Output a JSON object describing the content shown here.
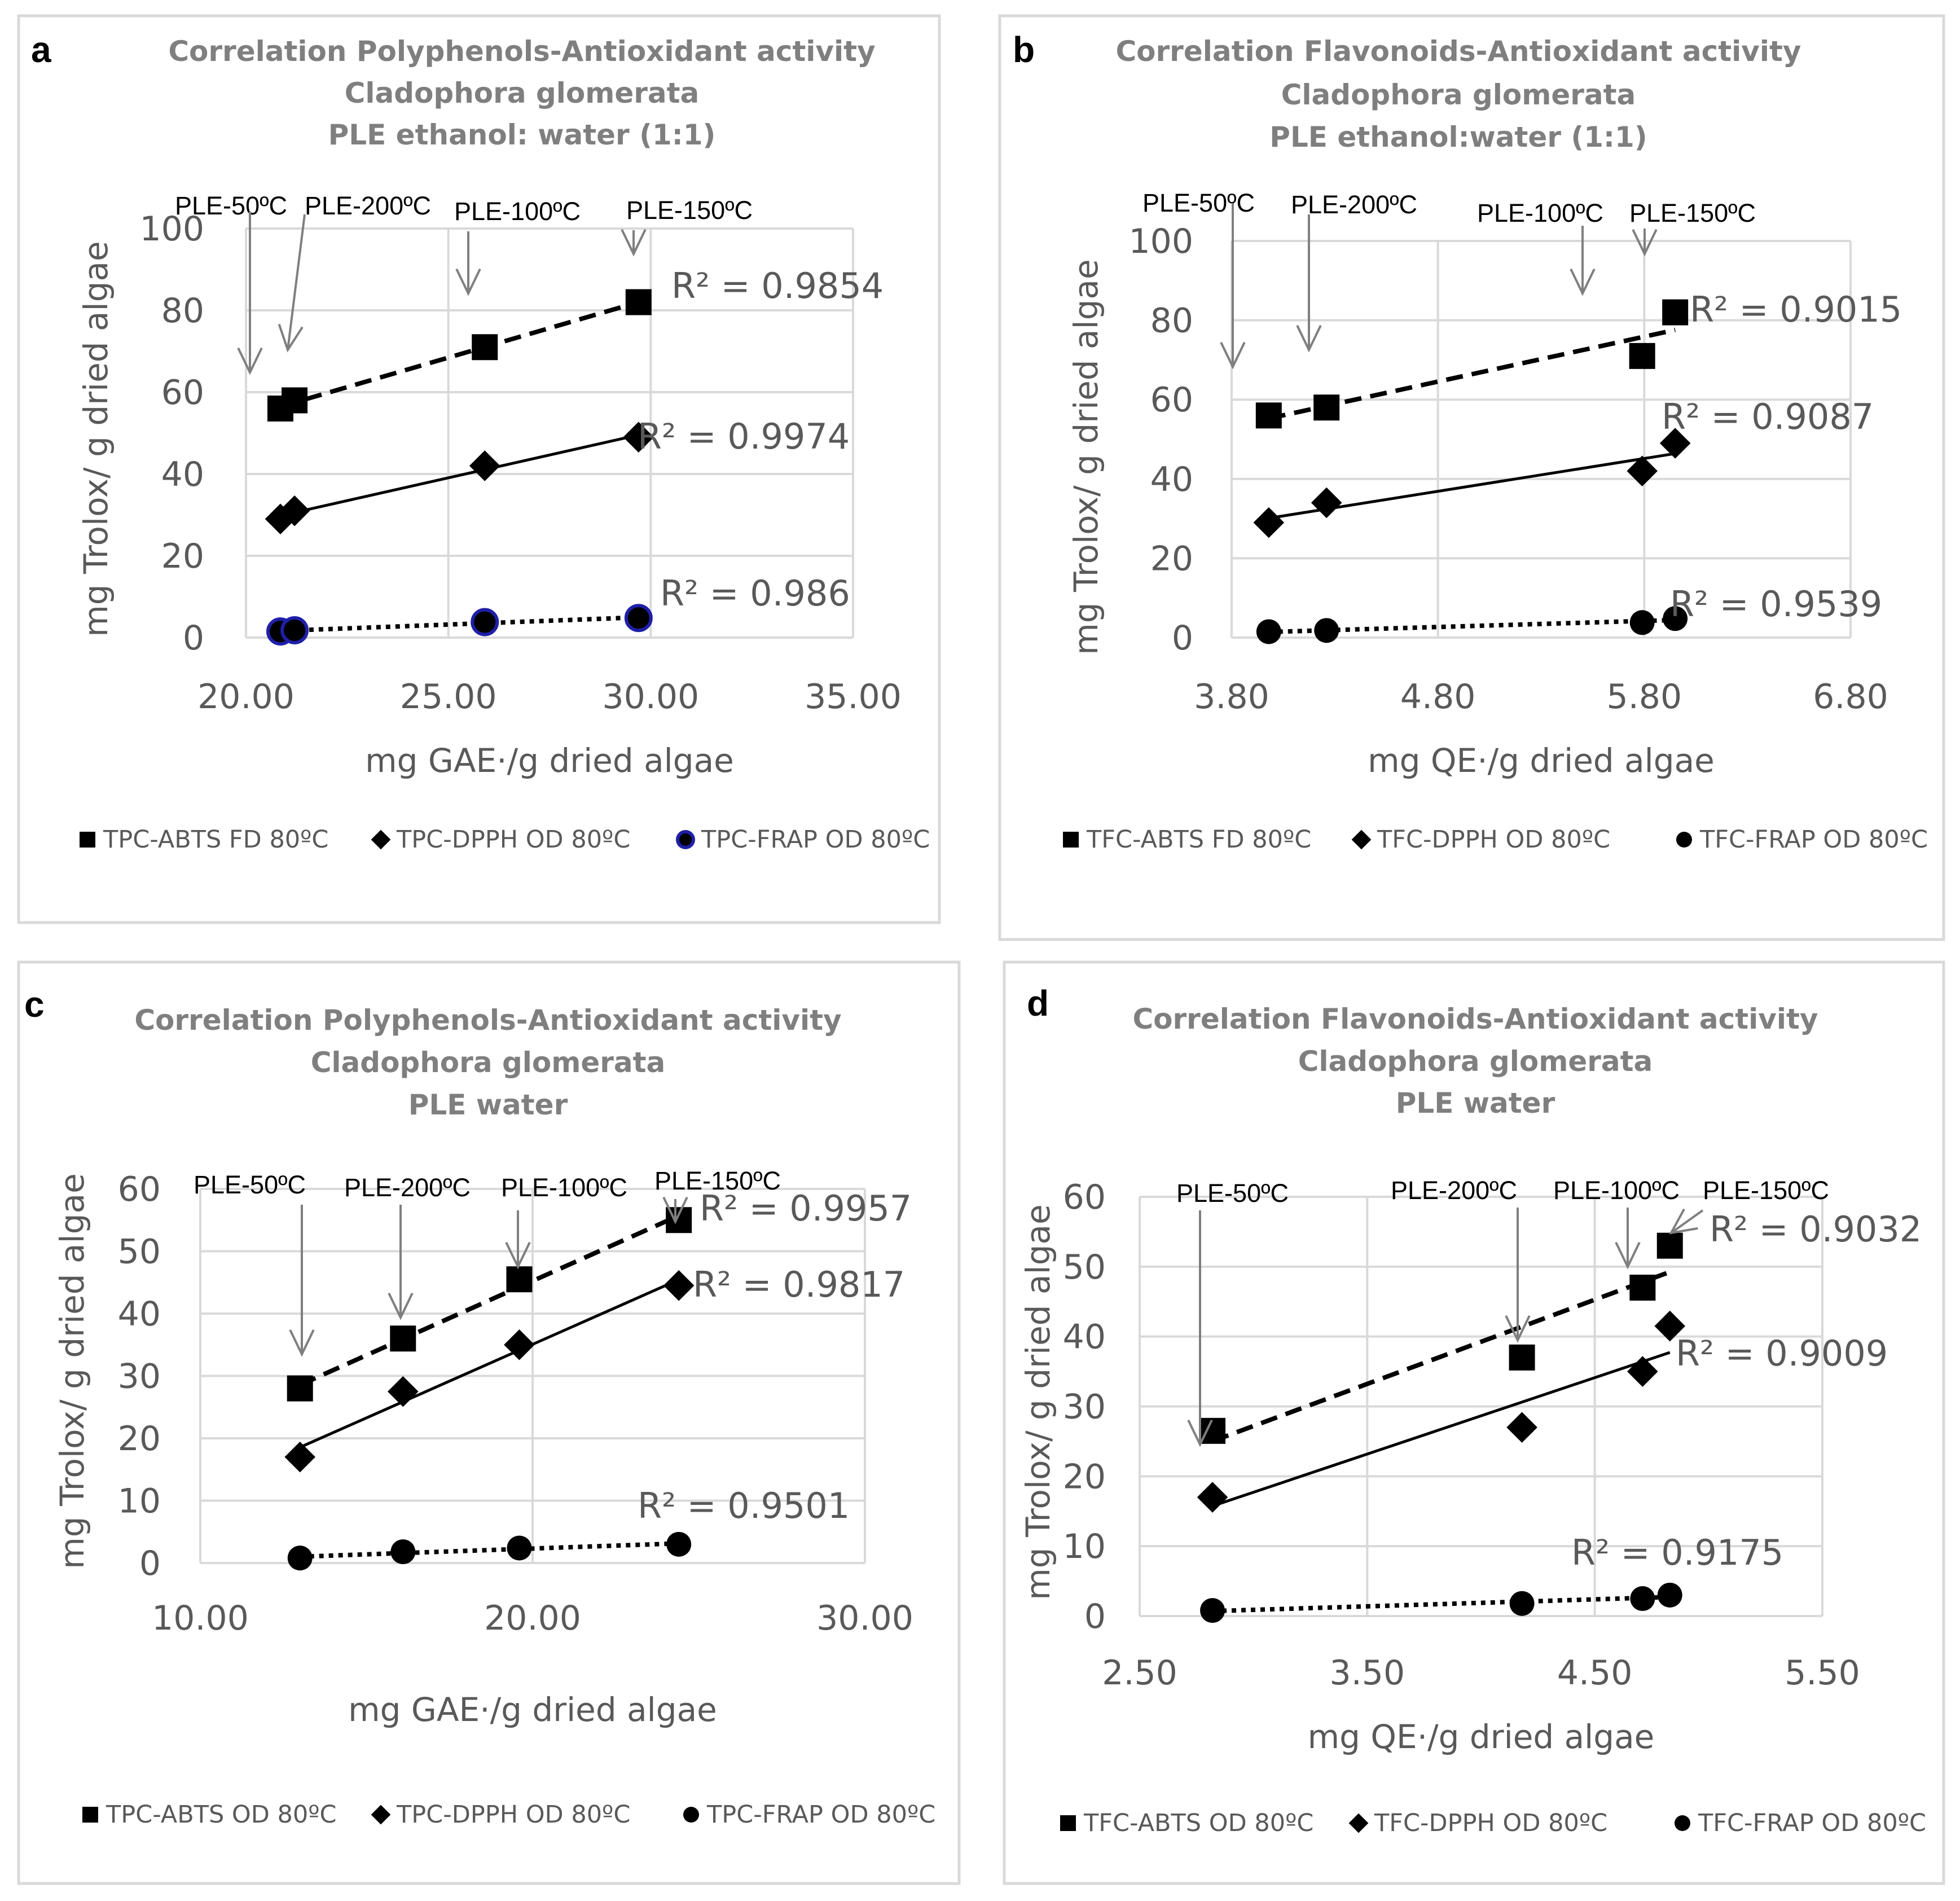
{
  "colors": {
    "grid": "#d9d9d9",
    "border": "#d9d9d9",
    "marker": "#000000",
    "frap_edge_a": "#1f1fa8",
    "arrow": "#7f7f7f"
  },
  "chart_data": [
    {
      "letter": "a",
      "type": "scatter",
      "title": [
        "Correlation  Polyphenols-Antioxidant activity",
        "Cladophora glomerata",
        "PLE   ethanol: water (1:1)"
      ],
      "xlabel": "mg GAE·/g dried algae",
      "ylabel": "mg Trolox/ g dried algae",
      "xlim": [
        20,
        35
      ],
      "ylim": [
        0,
        100
      ],
      "xticks": [
        "20.00",
        "25.00",
        "30.00",
        "35.00"
      ],
      "yticks": [
        "0",
        "20",
        "40",
        "60",
        "80",
        "100"
      ],
      "grid": true,
      "legend": "bottom",
      "series": [
        {
          "name": "TPC-ABTS FD 80ºC",
          "marker": "square",
          "trend": "dashed",
          "r2": "R² = 0.9854",
          "x": [
            20.85,
            21.2,
            25.9,
            29.7
          ],
          "y": [
            56,
            58,
            71,
            82
          ]
        },
        {
          "name": "TPC-DPPH OD 80ºC",
          "marker": "diamond",
          "trend": "solid",
          "r2": "R² = 0.9974",
          "x": [
            20.85,
            21.2,
            25.9,
            29.7
          ],
          "y": [
            29,
            31,
            42,
            49
          ]
        },
        {
          "name": "TPC-FRAP OD 80ºC",
          "marker": "circle-blue",
          "trend": "dotted",
          "r2": "R² = 0.986",
          "x": [
            20.85,
            21.2,
            25.9,
            29.7
          ],
          "y": [
            1.5,
            1.8,
            3.8,
            4.8
          ]
        }
      ],
      "annotations": [
        "PLE-50ºC",
        "PLE-200ºC",
        "PLE-100ºC",
        "PLE-150ºC"
      ]
    },
    {
      "letter": "b",
      "type": "scatter",
      "title": [
        "Correlation Flavonoids-Antioxidant activity",
        "Cladophora glomerata",
        "PLE   ethanol:water (1:1)"
      ],
      "xlabel": "mg QE·/g dried algae",
      "ylabel": "mg Trolox/ g dried algae",
      "xlim": [
        3.8,
        6.8
      ],
      "ylim": [
        0,
        100
      ],
      "xticks": [
        "3.80",
        "4.80",
        "5.80",
        "6.80"
      ],
      "yticks": [
        "0",
        "20",
        "40",
        "60",
        "80",
        "100"
      ],
      "grid": true,
      "legend": "bottom",
      "series": [
        {
          "name": "TFC-ABTS FD 80ºC",
          "marker": "square",
          "trend": "dashed",
          "r2": "R² = 0.9015",
          "x": [
            3.98,
            4.26,
            5.79,
            5.95
          ],
          "y": [
            56,
            58,
            71,
            82
          ]
        },
        {
          "name": "TFC-DPPH OD 80ºC",
          "marker": "diamond",
          "trend": "solid",
          "r2": "R² = 0.9087",
          "x": [
            3.98,
            4.26,
            5.79,
            5.95
          ],
          "y": [
            29,
            34,
            42,
            49
          ]
        },
        {
          "name": "TFC-FRAP OD 80ºC",
          "marker": "circle",
          "trend": "dotted",
          "r2": "R² = 0.9539",
          "x": [
            3.98,
            4.26,
            5.79,
            5.95
          ],
          "y": [
            1.5,
            1.8,
            3.8,
            4.8
          ]
        }
      ],
      "annotations": [
        "PLE-50ºC",
        "PLE-200ºC",
        "PLE-100ºC",
        "PLE-150ºC"
      ]
    },
    {
      "letter": "c",
      "type": "scatter",
      "title": [
        "Correlation  Polyphenols-Antioxidant activity",
        "Cladophora glomerata",
        "PLE   water"
      ],
      "xlabel": "mg GAE·/g dried algae",
      "ylabel": "mg Trolox/ g dried algae",
      "xlim": [
        10,
        30
      ],
      "ylim": [
        0,
        60
      ],
      "xticks": [
        "10.00",
        "20.00",
        "30.00"
      ],
      "yticks": [
        "0",
        "10",
        "20",
        "30",
        "40",
        "50",
        "60"
      ],
      "grid": true,
      "legend": "bottom",
      "series": [
        {
          "name": "TPC-ABTS OD 80ºC",
          "marker": "square",
          "trend": "dashed",
          "r2": "R² = 0.9957",
          "x": [
            13.0,
            16.1,
            19.6,
            24.4
          ],
          "y": [
            28,
            36,
            45.5,
            55
          ]
        },
        {
          "name": "TPC-DPPH OD 80ºC",
          "marker": "diamond",
          "trend": "solid",
          "r2": "R² = 0.9817",
          "x": [
            13.0,
            16.1,
            19.6,
            24.4
          ],
          "y": [
            17,
            27.5,
            35,
            44.5
          ]
        },
        {
          "name": "TPC-FRAP OD 80ºC",
          "marker": "circle",
          "trend": "dotted",
          "r2": "R² = 0.9501",
          "x": [
            13.0,
            16.1,
            19.6,
            24.4
          ],
          "y": [
            0.8,
            1.8,
            2.4,
            3.0
          ]
        }
      ],
      "annotations": [
        "PLE-50ºC",
        "PLE-200ºC",
        "PLE-100ºC",
        "PLE-150ºC"
      ]
    },
    {
      "letter": "d",
      "type": "scatter",
      "title": [
        "Correlation Flavonoids-Antioxidant activity",
        "Cladophora glomerata",
        "PLE   water"
      ],
      "xlabel": "mg QE·/g dried algae",
      "ylabel": "mg Trolox/ g dried algae",
      "xlim": [
        2.5,
        5.5
      ],
      "ylim": [
        0,
        60
      ],
      "xticks": [
        "2.50",
        "3.50",
        "4.50",
        "5.50"
      ],
      "yticks": [
        "0",
        "10",
        "20",
        "30",
        "40",
        "50",
        "60"
      ],
      "grid": true,
      "legend": "bottom",
      "series": [
        {
          "name": "TFC-ABTS OD 80ºC",
          "marker": "square",
          "trend": "dashed",
          "r2": "R² = 0.9032",
          "x": [
            2.82,
            4.18,
            4.71,
            4.83
          ],
          "y": [
            26.5,
            37,
            47,
            53
          ]
        },
        {
          "name": "TFC-DPPH OD 80ºC",
          "marker": "diamond",
          "trend": "solid",
          "r2": "R² = 0.9009",
          "x": [
            2.82,
            4.18,
            4.71,
            4.83
          ],
          "y": [
            17,
            27,
            35,
            41.5
          ]
        },
        {
          "name": "TFC-FRAP OD 80ºC",
          "marker": "circle",
          "trend": "dotted",
          "r2": "R² = 0.9175",
          "x": [
            2.82,
            4.18,
            4.71,
            4.83
          ],
          "y": [
            0.8,
            1.8,
            2.5,
            3.0
          ]
        }
      ],
      "annotations": [
        "PLE-50ºC",
        "PLE-200ºC",
        "PLE-100ºC",
        "PLE-150ºC"
      ]
    }
  ]
}
